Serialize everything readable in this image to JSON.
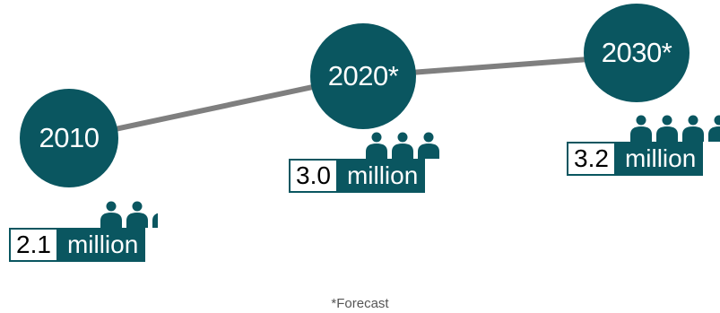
{
  "colors": {
    "primary": "#0a5660",
    "line": "#7f7f7f",
    "text_dark": "#000000"
  },
  "milestones": [
    {
      "year": "2010",
      "value": "2.1",
      "unit": "million"
    },
    {
      "year": "2020*",
      "value": "3.0",
      "unit": "million"
    },
    {
      "year": "2030*",
      "value": "3.2",
      "unit": "million"
    }
  ],
  "people_icon": "people-group-icon",
  "footnote": "*Forecast"
}
